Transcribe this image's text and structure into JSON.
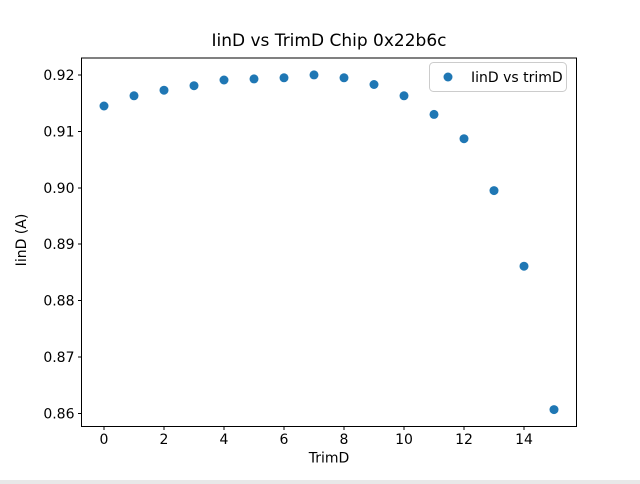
{
  "figure": {
    "background": "#ffffff"
  },
  "chart_data": {
    "type": "scatter",
    "title": "IinD vs TrimD Chip 0x22b6c",
    "xlabel": "TrimD",
    "ylabel": "IinD (A)",
    "legend": {
      "label": "IinD vs trimD",
      "position": "upper right"
    },
    "x": [
      0,
      1,
      2,
      3,
      4,
      5,
      6,
      7,
      8,
      9,
      10,
      11,
      12,
      13,
      14,
      15
    ],
    "y": [
      0.9145,
      0.9163,
      0.9173,
      0.9181,
      0.9191,
      0.9193,
      0.9195,
      0.92,
      0.9195,
      0.9183,
      0.9163,
      0.913,
      0.9087,
      0.8995,
      0.8861,
      0.8607
    ],
    "xticks": [
      0,
      2,
      4,
      6,
      8,
      10,
      12,
      14
    ],
    "yticks": [
      0.86,
      0.87,
      0.88,
      0.89,
      0.9,
      0.91,
      0.92
    ],
    "xlim": [
      -0.75,
      15.75
    ],
    "ylim": [
      0.8577,
      0.923
    ],
    "grid": false,
    "marker": "circle",
    "marker_color": "#1f77b4",
    "colors": {
      "text": "#000000",
      "spine": "#000000",
      "legend_border": "#cccccc",
      "legend_fill": "#ffffff",
      "background": "#ffffff"
    }
  }
}
